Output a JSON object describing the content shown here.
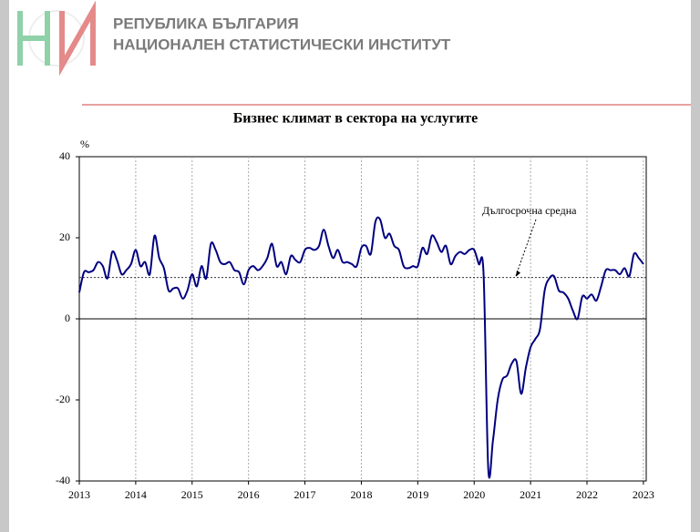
{
  "header": {
    "line1": "РЕПУБЛИКА БЪЛГАРИЯ",
    "line2": "НАЦИОНАЛЕН СТАТИСТИЧЕСКИ ИНСТИТУТ"
  },
  "chart_data": {
    "type": "line",
    "title": "Бизнес климат в сектора на услугите",
    "y_label": "%",
    "annotation": "Дългосрочна средна",
    "reference_line": 10.2,
    "x": [
      2013,
      2013.083,
      2013.167,
      2013.25,
      2013.333,
      2013.417,
      2013.5,
      2013.583,
      2013.667,
      2013.75,
      2013.833,
      2013.917,
      2014,
      2014.083,
      2014.167,
      2014.25,
      2014.333,
      2014.417,
      2014.5,
      2014.583,
      2014.667,
      2014.75,
      2014.833,
      2014.917,
      2015,
      2015.083,
      2015.167,
      2015.25,
      2015.333,
      2015.417,
      2015.5,
      2015.583,
      2015.667,
      2015.75,
      2015.833,
      2015.917,
      2016,
      2016.083,
      2016.167,
      2016.25,
      2016.333,
      2016.417,
      2016.5,
      2016.583,
      2016.667,
      2016.75,
      2016.833,
      2016.917,
      2017,
      2017.083,
      2017.167,
      2017.25,
      2017.333,
      2017.417,
      2017.5,
      2017.583,
      2017.667,
      2017.75,
      2017.833,
      2017.917,
      2018,
      2018.083,
      2018.167,
      2018.25,
      2018.333,
      2018.417,
      2018.5,
      2018.583,
      2018.667,
      2018.75,
      2018.833,
      2018.917,
      2019,
      2019.083,
      2019.167,
      2019.25,
      2019.333,
      2019.417,
      2019.5,
      2019.583,
      2019.667,
      2019.75,
      2019.833,
      2019.917,
      2020,
      2020.083,
      2020.167,
      2020.25,
      2020.333,
      2020.417,
      2020.5,
      2020.583,
      2020.667,
      2020.75,
      2020.833,
      2020.917,
      2021,
      2021.083,
      2021.167,
      2021.25,
      2021.333,
      2021.417,
      2021.5,
      2021.583,
      2021.667,
      2021.75,
      2021.833,
      2021.917,
      2022,
      2022.083,
      2022.167,
      2022.25,
      2022.333,
      2022.417,
      2022.5,
      2022.583,
      2022.667,
      2022.75,
      2022.833,
      2022.917,
      2023
    ],
    "series": [
      {
        "color": "#000080",
        "values": [
          6.5,
          11.5,
          11.5,
          12,
          14,
          13,
          10,
          16.5,
          14.5,
          11,
          12,
          13.5,
          17,
          13,
          14,
          11,
          20.5,
          15,
          12.5,
          7,
          7.5,
          7.5,
          5,
          7,
          11,
          8,
          13,
          10,
          18.5,
          17,
          14,
          13.5,
          14,
          12,
          11.5,
          8.5,
          12,
          13,
          12,
          13,
          15,
          18.5,
          13,
          14,
          11,
          15.5,
          14.5,
          14,
          17,
          17.5,
          17,
          18,
          22,
          18,
          15,
          17,
          14,
          14,
          13.5,
          13,
          17.5,
          18,
          16,
          24,
          24.5,
          20,
          21,
          18,
          17,
          13,
          12.5,
          13,
          13,
          17.5,
          16,
          20.5,
          19,
          16.5,
          18,
          13.5,
          15.5,
          16.5,
          16,
          17,
          17,
          13.5,
          11,
          -37,
          -30,
          -20,
          -15,
          -14,
          -11,
          -10.5,
          -18.5,
          -12,
          -7,
          -5,
          -2.5,
          7,
          10,
          10.5,
          7,
          6.5,
          5,
          2,
          0,
          5.5,
          5,
          6,
          4.5,
          8,
          12,
          12,
          12,
          11,
          12.5,
          10.5,
          16,
          15,
          13.5
        ]
      }
    ],
    "xlim": [
      2013,
      2023.05
    ],
    "xticks": [
      2013,
      2014,
      2015,
      2016,
      2017,
      2018,
      2019,
      2020,
      2021,
      2022,
      2023
    ],
    "ylim": [
      -40,
      40
    ],
    "yticks": [
      -40,
      -20,
      0,
      20,
      40
    ],
    "grid": "x"
  }
}
